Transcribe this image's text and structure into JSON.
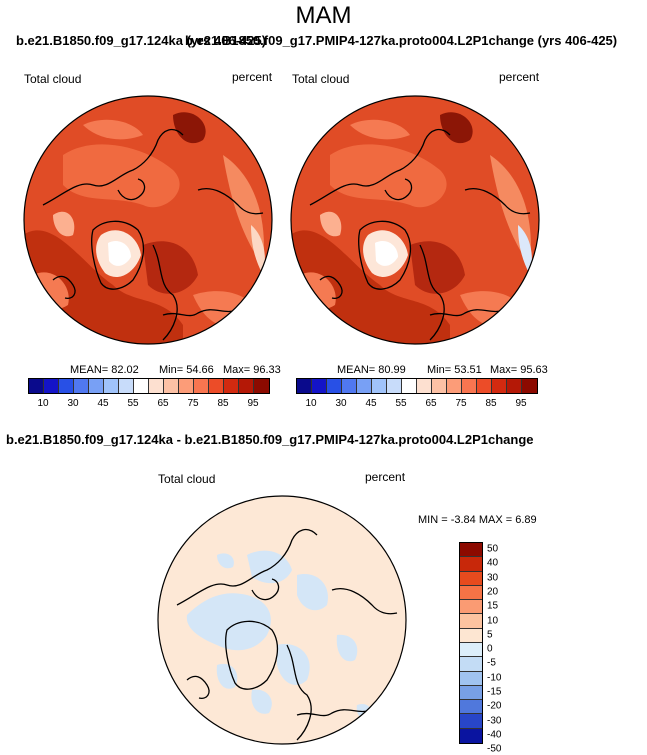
{
  "season": "MAM",
  "case1_title": "b.e21.B1850.f09_g17.124ka (yrs 406-425)",
  "case2_title": "b.e21.B1850.f09_g17.PMIP4-127ka.proto004.L2P1change (yrs 406-425)",
  "diff_title": "b.e21.B1850.f09_g17.124ka - b.e21.B1850.f09_g17.PMIP4-127ka.proto004.L2P1change",
  "variable": "Total cloud",
  "units": "percent",
  "panel1": {
    "mean": "MEAN= 82.02",
    "min": "Min= 54.66",
    "max": "Max= 96.33"
  },
  "panel2": {
    "mean": "MEAN= 80.99",
    "min": "Min= 53.51",
    "max": "Max= 95.63"
  },
  "diff_minmax": "MIN = -3.84 MAX = 6.89",
  "abs_colorbar": {
    "colors": [
      "#0a0a8c",
      "#1414c8",
      "#2850e6",
      "#5078f0",
      "#78a0f5",
      "#a0c3fa",
      "#c8dcfa",
      "#ffffff",
      "#fde0d0",
      "#fcc1a5",
      "#fc9c78",
      "#f87550",
      "#ec4c28",
      "#d22a10",
      "#b41806",
      "#8c0a00"
    ],
    "labels": [
      "10",
      "30",
      "45",
      "55",
      "65",
      "75",
      "85",
      "95"
    ]
  },
  "diff_colorbar": {
    "colors": [
      "#8c0a00",
      "#c8280a",
      "#e64b1e",
      "#f57346",
      "#fa9b73",
      "#fcc3a0",
      "#fde6d2",
      "#dceefa",
      "#c3dcf5",
      "#a0c3f0",
      "#78a0e6",
      "#5078dc",
      "#2846c8",
      "#0a14a0"
    ],
    "labels": [
      "50",
      "40",
      "30",
      "20",
      "15",
      "10",
      "5",
      "0",
      "-5",
      "-10",
      "-15",
      "-20",
      "-30",
      "-40",
      "-50"
    ]
  },
  "colors": {
    "fill_dark": "#b42810",
    "fill_mid": "#e04c26",
    "fill_light": "#f57a52",
    "fill_pale": "#fcc0a4",
    "diff_base": "#fde8d6",
    "diff_neg": "#d4e6f7"
  }
}
